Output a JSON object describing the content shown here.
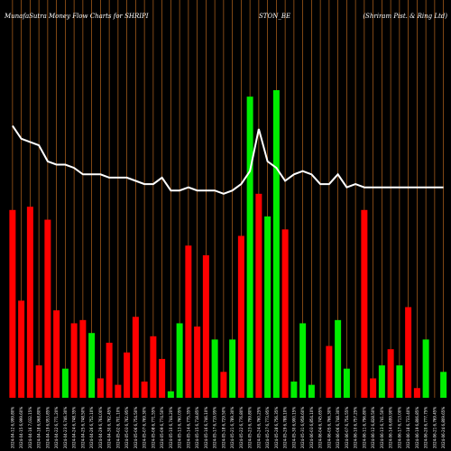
{
  "header": {
    "left": "MunafaSutra  Money Flow  Charts for SHRIPI",
    "middle": "STON_BE",
    "right": "(Shriram Pist. & Ring Ltd)"
  },
  "colors": {
    "background": "#000000",
    "gridline": "#b5651d",
    "up": "#00ee00",
    "down": "#ff0000",
    "line": "#ffffff"
  },
  "chart_data": {
    "type": "bar",
    "title": "MunafaSutra  Money Flow  Charts for SHRIPISTON_BE",
    "subtitle": "(Shriram Pist. & Ring Ltd)",
    "grid": true,
    "categories": [
      "2024-04-12 6,999.80%",
      "2024-04-15 6,999.60%",
      "2024-04-16 7,032.15%",
      "2024-04-18 6,968.80%",
      "2024-04-19 6,953.85%",
      "2024-04-22 6,771.20%",
      "2024-04-23 6,746.30%",
      "2024-04-24 6,748.35%",
      "2024-04-25 6,748.50%",
      "2024-04-26 6,752.10%",
      "2024-04-29 6,764.00%",
      "2024-04-30 6,762.45%",
      "2024-05-02 6,701.10%",
      "2024-05-03 6,762.95%",
      "2024-05-06 6,754.50%",
      "2024-05-07 6,769.30%",
      "2024-05-08 6,771.55%",
      "2024-05-09 6,774.50%",
      "2024-05-10 6,744.20%",
      "2024-05-13 6,760.05%",
      "2024-05-14 6,775.35%",
      "2024-05-15 6,718.85%",
      "2024-05-16 6,746.10%",
      "2024-05-17 6,719.95%",
      "2024-05-18 6,729.50%",
      "2024-05-21 6,789.30%",
      "2024-05-22 6,776.80%",
      "2024-05-23 6,799.80%",
      "2024-05-24 6,760.25%",
      "2024-05-27 6,773.95%",
      "2024-05-28 6,756.35%",
      "2024-05-29 6,788.10%",
      "2024-05-30 6,900.15%",
      "2024-05-31 6,958.60%",
      "2024-06-03 6,854.10%",
      "2024-06-04 6,745.65%",
      "2024-06-05 6,766.30%",
      "2024-06-06 6,748.30%",
      "2024-06-07 6,754.55%",
      "2024-06-10 6,757.25%",
      "2024-06-11 6,796.80%",
      "2024-06-12 6,828.50%",
      "2024-06-13 6,741.50%",
      "2024-06-14 6,699.90%",
      "2024-06-17 6,713.00%",
      "2024-06-18 6,733.40%",
      "2024-06-19 6,806.85%",
      "2024-06-20 6,777.75%",
      "2024-06-21 6,769.45%",
      "2024-06-24 6,809.65%"
    ],
    "series": [
      {
        "type": "bar",
        "values": [
          58,
          30,
          59,
          10,
          55,
          27,
          9,
          23,
          24,
          20,
          6,
          17,
          4,
          14,
          25,
          5,
          19,
          12,
          2,
          23,
          47,
          22,
          44,
          18,
          8,
          18,
          50,
          93,
          63,
          56,
          95,
          52,
          5,
          23,
          4,
          0,
          16,
          24,
          9,
          0,
          58,
          6,
          10,
          15,
          10,
          28,
          3,
          18,
          0,
          8
        ],
        "direction": [
          "down",
          "down",
          "down",
          "down",
          "down",
          "down",
          "up",
          "down",
          "down",
          "up",
          "down",
          "down",
          "down",
          "down",
          "down",
          "down",
          "down",
          "down",
          "up",
          "up",
          "down",
          "down",
          "down",
          "up",
          "down",
          "up",
          "down",
          "up",
          "down",
          "up",
          "up",
          "down",
          "up",
          "up",
          "up",
          "up",
          "down",
          "up",
          "up",
          "up",
          "down",
          "down",
          "up",
          "down",
          "up",
          "down",
          "down",
          "up",
          "down",
          "up"
        ]
      },
      {
        "type": "line",
        "values": [
          84,
          80,
          79,
          78,
          73,
          72,
          72,
          71,
          69,
          69,
          69,
          68,
          68,
          68,
          67,
          66,
          66,
          68,
          64,
          64,
          65,
          64,
          64,
          64,
          63,
          64,
          66,
          70,
          83,
          73,
          71,
          67,
          69,
          70,
          69,
          66,
          66,
          69,
          65,
          66,
          65,
          65,
          65,
          65,
          65,
          65,
          65,
          65,
          65,
          65
        ]
      }
    ],
    "ylim": [
      0,
      100
    ],
    "xlabel": "",
    "ylabel": ""
  }
}
